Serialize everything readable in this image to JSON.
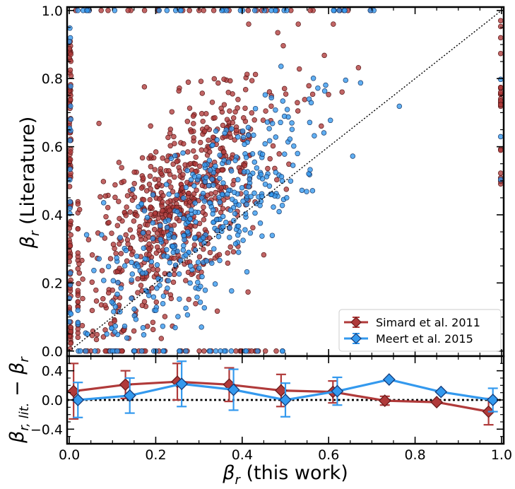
{
  "chart_data": [
    {
      "type": "scatter",
      "panel": "top",
      "xlabel": "β_r (this work)",
      "ylabel": "β_r (Literature)",
      "ylabel_parts": {
        "symbol": "β",
        "sub": "r",
        "text": "(Literature)"
      },
      "xlim": [
        -0.005,
        1.005
      ],
      "ylim": [
        -0.015,
        1.01
      ],
      "yticks": [
        0.0,
        0.2,
        0.4,
        0.6,
        0.8,
        1.0
      ],
      "ytick_labels": [
        "0.0",
        "0.2",
        "0.4",
        "0.6",
        "0.8",
        "1.0"
      ],
      "one_to_one_line": true,
      "legend_position": "lower-right",
      "series": [
        {
          "name": "Simard et al. 2011",
          "color": "#b03a3a",
          "edge_color": "#5a1a1a",
          "distribution": {
            "x_mean": 0.25,
            "x_sd": 0.12,
            "y_offset": 0.18,
            "y_sd": 0.14,
            "n": 700,
            "n_on_x0": 95,
            "n_on_y0": 40,
            "n_on_y1": 28,
            "n_on_x1": 25
          }
        },
        {
          "name": "Meert et al. 2015",
          "color": "#3399ee",
          "edge_color": "#1a3a6a",
          "distribution": {
            "x_mean": 0.33,
            "x_sd": 0.14,
            "y_offset": 0.08,
            "y_sd": 0.12,
            "n": 380,
            "n_on_x0": 20,
            "n_on_y0": 30,
            "n_on_y1": 30,
            "n_on_x1": 3
          }
        }
      ]
    },
    {
      "type": "line",
      "panel": "bottom",
      "xlabel": "β_r (this work)",
      "xlabel_parts": {
        "symbol": "β",
        "sub": "r",
        "text": "(this work)"
      },
      "ylabel": "β_r,lit. − β_r",
      "ylabel_parts": {
        "symbol": "β",
        "sub": "r, lit.",
        "minus": "−",
        "symbol2": "β",
        "sub2": "r"
      },
      "xlim": [
        -0.005,
        1.005
      ],
      "ylim": [
        -0.6,
        0.6
      ],
      "xticks": [
        0.0,
        0.2,
        0.4,
        0.6,
        0.8,
        1.0
      ],
      "xtick_labels": [
        "0.0",
        "0.2",
        "0.4",
        "0.6",
        "0.8",
        "1.0"
      ],
      "yticks": [
        -0.4,
        0.0,
        0.4
      ],
      "ytick_labels": [
        "−0.4",
        "0.0",
        "0.4"
      ],
      "zero_line": true,
      "series": [
        {
          "name": "Simard et al. 2011",
          "color": "#b03a3a",
          "x": [
            0.01,
            0.13,
            0.25,
            0.37,
            0.49,
            0.61,
            0.73,
            0.85,
            0.97
          ],
          "y": [
            0.12,
            0.21,
            0.25,
            0.21,
            0.13,
            0.11,
            -0.01,
            -0.03,
            -0.16
          ],
          "err": [
            0.38,
            0.19,
            0.25,
            0.23,
            0.22,
            0.15,
            0.06,
            0.0,
            0.18
          ]
        },
        {
          "name": "Meert et al. 2015",
          "color": "#3399ee",
          "x": [
            0.02,
            0.14,
            0.26,
            0.38,
            0.5,
            0.62,
            0.74,
            0.86,
            0.98
          ],
          "y": [
            0.0,
            0.06,
            0.22,
            0.14,
            0.0,
            0.12,
            0.28,
            0.11,
            0.0
          ],
          "err": [
            0.24,
            0.24,
            0.31,
            0.28,
            0.23,
            0.19,
            0.0,
            0.0,
            0.16
          ]
        }
      ]
    }
  ]
}
